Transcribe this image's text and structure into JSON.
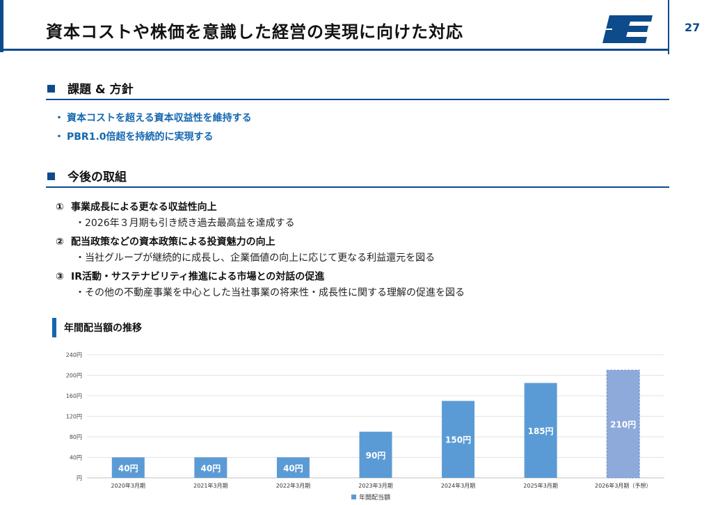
{
  "header": {
    "title": "資本コストや株価を意識した経営の実現に向けた対応",
    "page_number": "27",
    "logo_letter": "E",
    "brand_color": "#0d4b8a"
  },
  "issues": {
    "heading": "課題 & 方針",
    "items": [
      "資本コストを超える資本収益性を維持する",
      "PBR1.0倍超を持続的に実現する"
    ]
  },
  "initiatives": {
    "heading": "今後の取組",
    "items": [
      {
        "num": "①",
        "title": "事業成長による更なる収益性向上",
        "sub": "・2026年３月期も引き続き過去最高益を達成する"
      },
      {
        "num": "②",
        "title": "配当政策などの資本政策による投資魅力の向上",
        "sub": "・当社グループが継続的に成長し、企業価値の向上に応じて更なる利益還元を図る"
      },
      {
        "num": "③",
        "title": "IR活動・サステナビリティ推進による市場との対話の促進",
        "sub": "・その他の不動産事業を中心とした当社事業の将来性・成長性に関する理解の促進を図る"
      }
    ]
  },
  "chart_heading": "年間配当額の推移",
  "chart_data": {
    "type": "bar",
    "categories": [
      "2020年3月期",
      "2021年3月期",
      "2022年3月期",
      "2023年3月期",
      "2024年3月期",
      "2025年3月期",
      "2026年3月期（予想）"
    ],
    "series": [
      {
        "name": "年間配当額",
        "values": [
          40,
          40,
          40,
          90,
          150,
          185,
          210
        ]
      }
    ],
    "data_labels": [
      "40円",
      "40円",
      "40円",
      "90円",
      "150円",
      "185円",
      "210円"
    ],
    "forecast_index": 6,
    "ylim": [
      0,
      240
    ],
    "yticks": [
      0,
      40,
      80,
      120,
      160,
      200,
      240
    ],
    "ytick_labels": [
      "円",
      "40円",
      "80円",
      "120円",
      "160円",
      "200円",
      "240円"
    ],
    "grid": true,
    "legend": "bottom",
    "bar_color": "#5b9bd5",
    "forecast_color": "#8eaadb"
  }
}
